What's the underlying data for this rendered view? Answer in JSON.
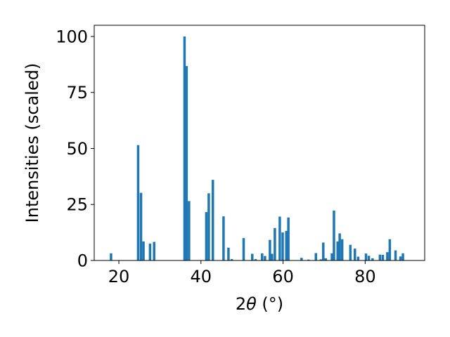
{
  "chart_data": {
    "type": "bar",
    "ylabel": "Intensities (scaled)",
    "xlabel_prefix": "2",
    "xlabel_theta": "θ",
    "xlabel_suffix": " (°)",
    "xlim": [
      14,
      94.5
    ],
    "ylim": [
      0,
      105
    ],
    "x_ticks": [
      20,
      40,
      60,
      80
    ],
    "y_ticks": [
      0,
      25,
      50,
      75,
      100
    ],
    "bar_width": 0.6,
    "bar_color": "#1f77b4",
    "grid": false,
    "x": [
      18.1,
      24.7,
      25.4,
      26.0,
      27.6,
      28.6,
      36.0,
      36.5,
      37.1,
      41.3,
      41.9,
      42.9,
      45.5,
      46.7,
      47.5,
      50.4,
      52.5,
      53.3,
      54.9,
      55.6,
      56.8,
      57.3,
      58.0,
      59.2,
      59.9,
      60.8,
      61.3,
      64.5,
      66.2,
      68.0,
      69.2,
      69.8,
      70.4,
      71.9,
      72.4,
      73.3,
      73.8,
      74.4,
      76.4,
      77.5,
      78.3,
      80.2,
      80.9,
      81.8,
      83.6,
      84.3,
      85.4,
      86.0,
      87.4,
      88.6,
      89.2
    ],
    "values": [
      3.2,
      51.5,
      30.2,
      8.5,
      7.5,
      8.3,
      100.0,
      86.8,
      26.5,
      21.6,
      30.0,
      36.0,
      19.7,
      5.7,
      0.6,
      10.0,
      3.0,
      0.6,
      3.2,
      2.0,
      9.2,
      3.0,
      14.5,
      19.6,
      12.5,
      13.2,
      19.2,
      1.2,
      0.4,
      3.3,
      0.5,
      8.0,
      1.0,
      3.2,
      22.3,
      8.5,
      12.1,
      9.5,
      7.0,
      5.3,
      1.7,
      3.1,
      2.1,
      1.0,
      2.6,
      2.5,
      3.7,
      9.5,
      4.5,
      1.8,
      3.2
    ]
  }
}
